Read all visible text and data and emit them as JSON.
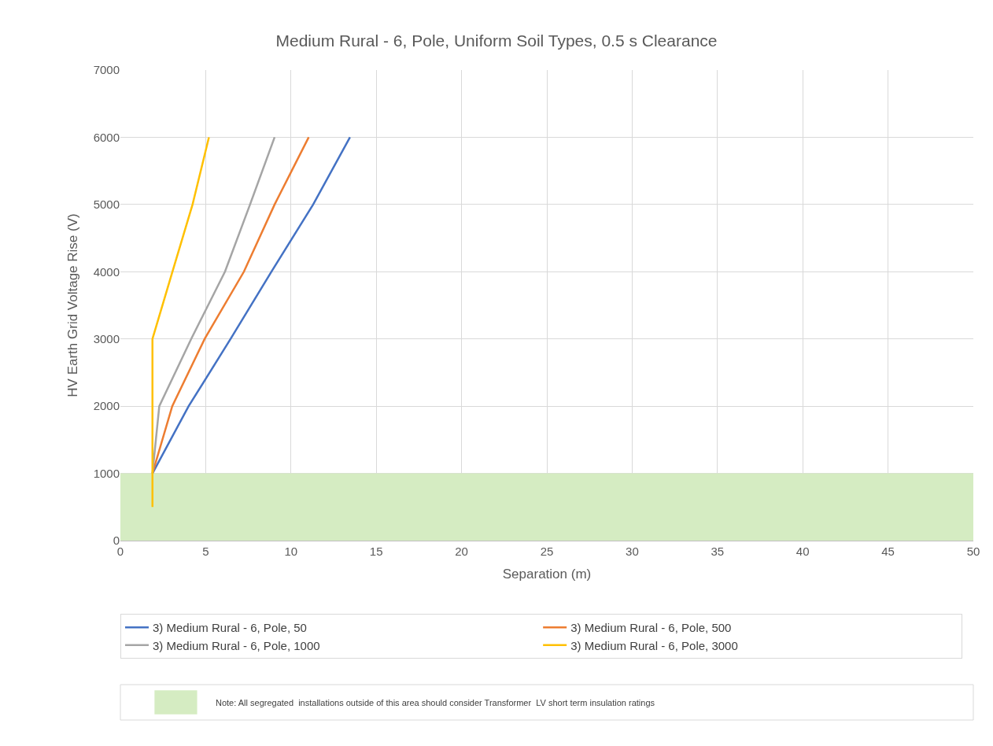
{
  "chart_data": {
    "type": "line",
    "title": "Medium Rural - 6, Pole, Uniform Soil Types, 0.5 s Clearance",
    "xlabel": "Separation (m)",
    "ylabel": "HV Earth Grid Voltage Rise (V)",
    "series": [
      {
        "name": "3) Medium Rural - 6, Pole, 50",
        "color": "#4472c4",
        "x": [
          null,
          1.88,
          4.0,
          6.46,
          8.85,
          11.3,
          13.46
        ],
        "values": [
          null,
          1000,
          2000,
          3000,
          4000,
          5000,
          6000
        ]
      },
      {
        "name": "3) Medium Rural - 6, Pole, 500",
        "color": "#ed7d31",
        "x": [
          null,
          1.88,
          3.04,
          4.94,
          7.24,
          9.04,
          11.04
        ],
        "values": [
          null,
          1000,
          2000,
          3000,
          4000,
          5000,
          6000
        ]
      },
      {
        "name": "3) Medium Rural - 6, Pole, 1000",
        "color": "#a5a5a5",
        "x": [
          null,
          1.88,
          2.28,
          4.15,
          6.13,
          7.6,
          9.04
        ],
        "values": [
          null,
          1000,
          2000,
          3000,
          4000,
          5000,
          6000
        ]
      },
      {
        "name": "3) Medium Rural - 6, Pole, 3000",
        "color": "#ffc000",
        "x": [
          1.88,
          1.88,
          1.88,
          1.88,
          3.05,
          4.23,
          5.19
        ],
        "values": [
          500,
          1000,
          2000,
          3000,
          4000,
          5000,
          6000
        ]
      }
    ],
    "bands": [
      {
        "axis": "y",
        "from": 0,
        "to": 1000,
        "color": "#d5ecc2"
      }
    ],
    "annotations": [
      "Note: All segregated  installations outside of this area should consider Transformer  LV short term insulation ratings"
    ],
    "xlim": [
      0,
      50
    ],
    "xticks": [
      0,
      5,
      10,
      15,
      20,
      25,
      30,
      35,
      40,
      45,
      50
    ],
    "ylim": [
      0,
      7000
    ],
    "yticks": [
      0,
      1000,
      2000,
      3000,
      4000,
      5000,
      6000,
      7000
    ],
    "grid": true,
    "legend": "bottom",
    "marker": "none",
    "line_style": "solid"
  }
}
